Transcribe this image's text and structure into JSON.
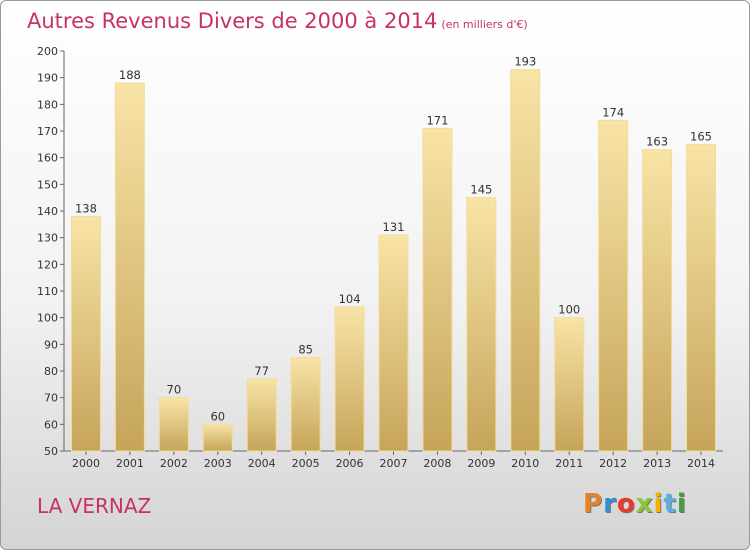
{
  "title": "Autres Revenus Divers de 2000 à 2014",
  "subtitle": "(en milliers d'€)",
  "place": "LA VERNAZ",
  "logo": {
    "text": "Proxiti",
    "colors": [
      "#e8822a",
      "#2f8fd0",
      "#e83a2e",
      "#8cc43e",
      "#f0b400",
      "#5ab0e0",
      "#3da03d"
    ]
  },
  "colors": {
    "title": "#c8325e",
    "bar_light": "#f7e2a3",
    "bar_dark": "#c9a75c"
  },
  "chart_data": {
    "type": "bar",
    "title": "Autres Revenus Divers de 2000 à 2014",
    "xlabel": "",
    "ylabel": "",
    "categories": [
      "2000",
      "2001",
      "2002",
      "2003",
      "2004",
      "2005",
      "2006",
      "2007",
      "2008",
      "2009",
      "2010",
      "2011",
      "2012",
      "2013",
      "2014"
    ],
    "values": [
      138,
      188,
      70,
      60,
      77,
      85,
      104,
      131,
      171,
      145,
      193,
      100,
      174,
      163,
      165
    ],
    "ylim": [
      50,
      200
    ],
    "yticks": [
      50,
      60,
      70,
      80,
      90,
      100,
      110,
      120,
      130,
      140,
      150,
      160,
      170,
      180,
      190,
      200
    ],
    "grid": false,
    "legend": "none"
  }
}
